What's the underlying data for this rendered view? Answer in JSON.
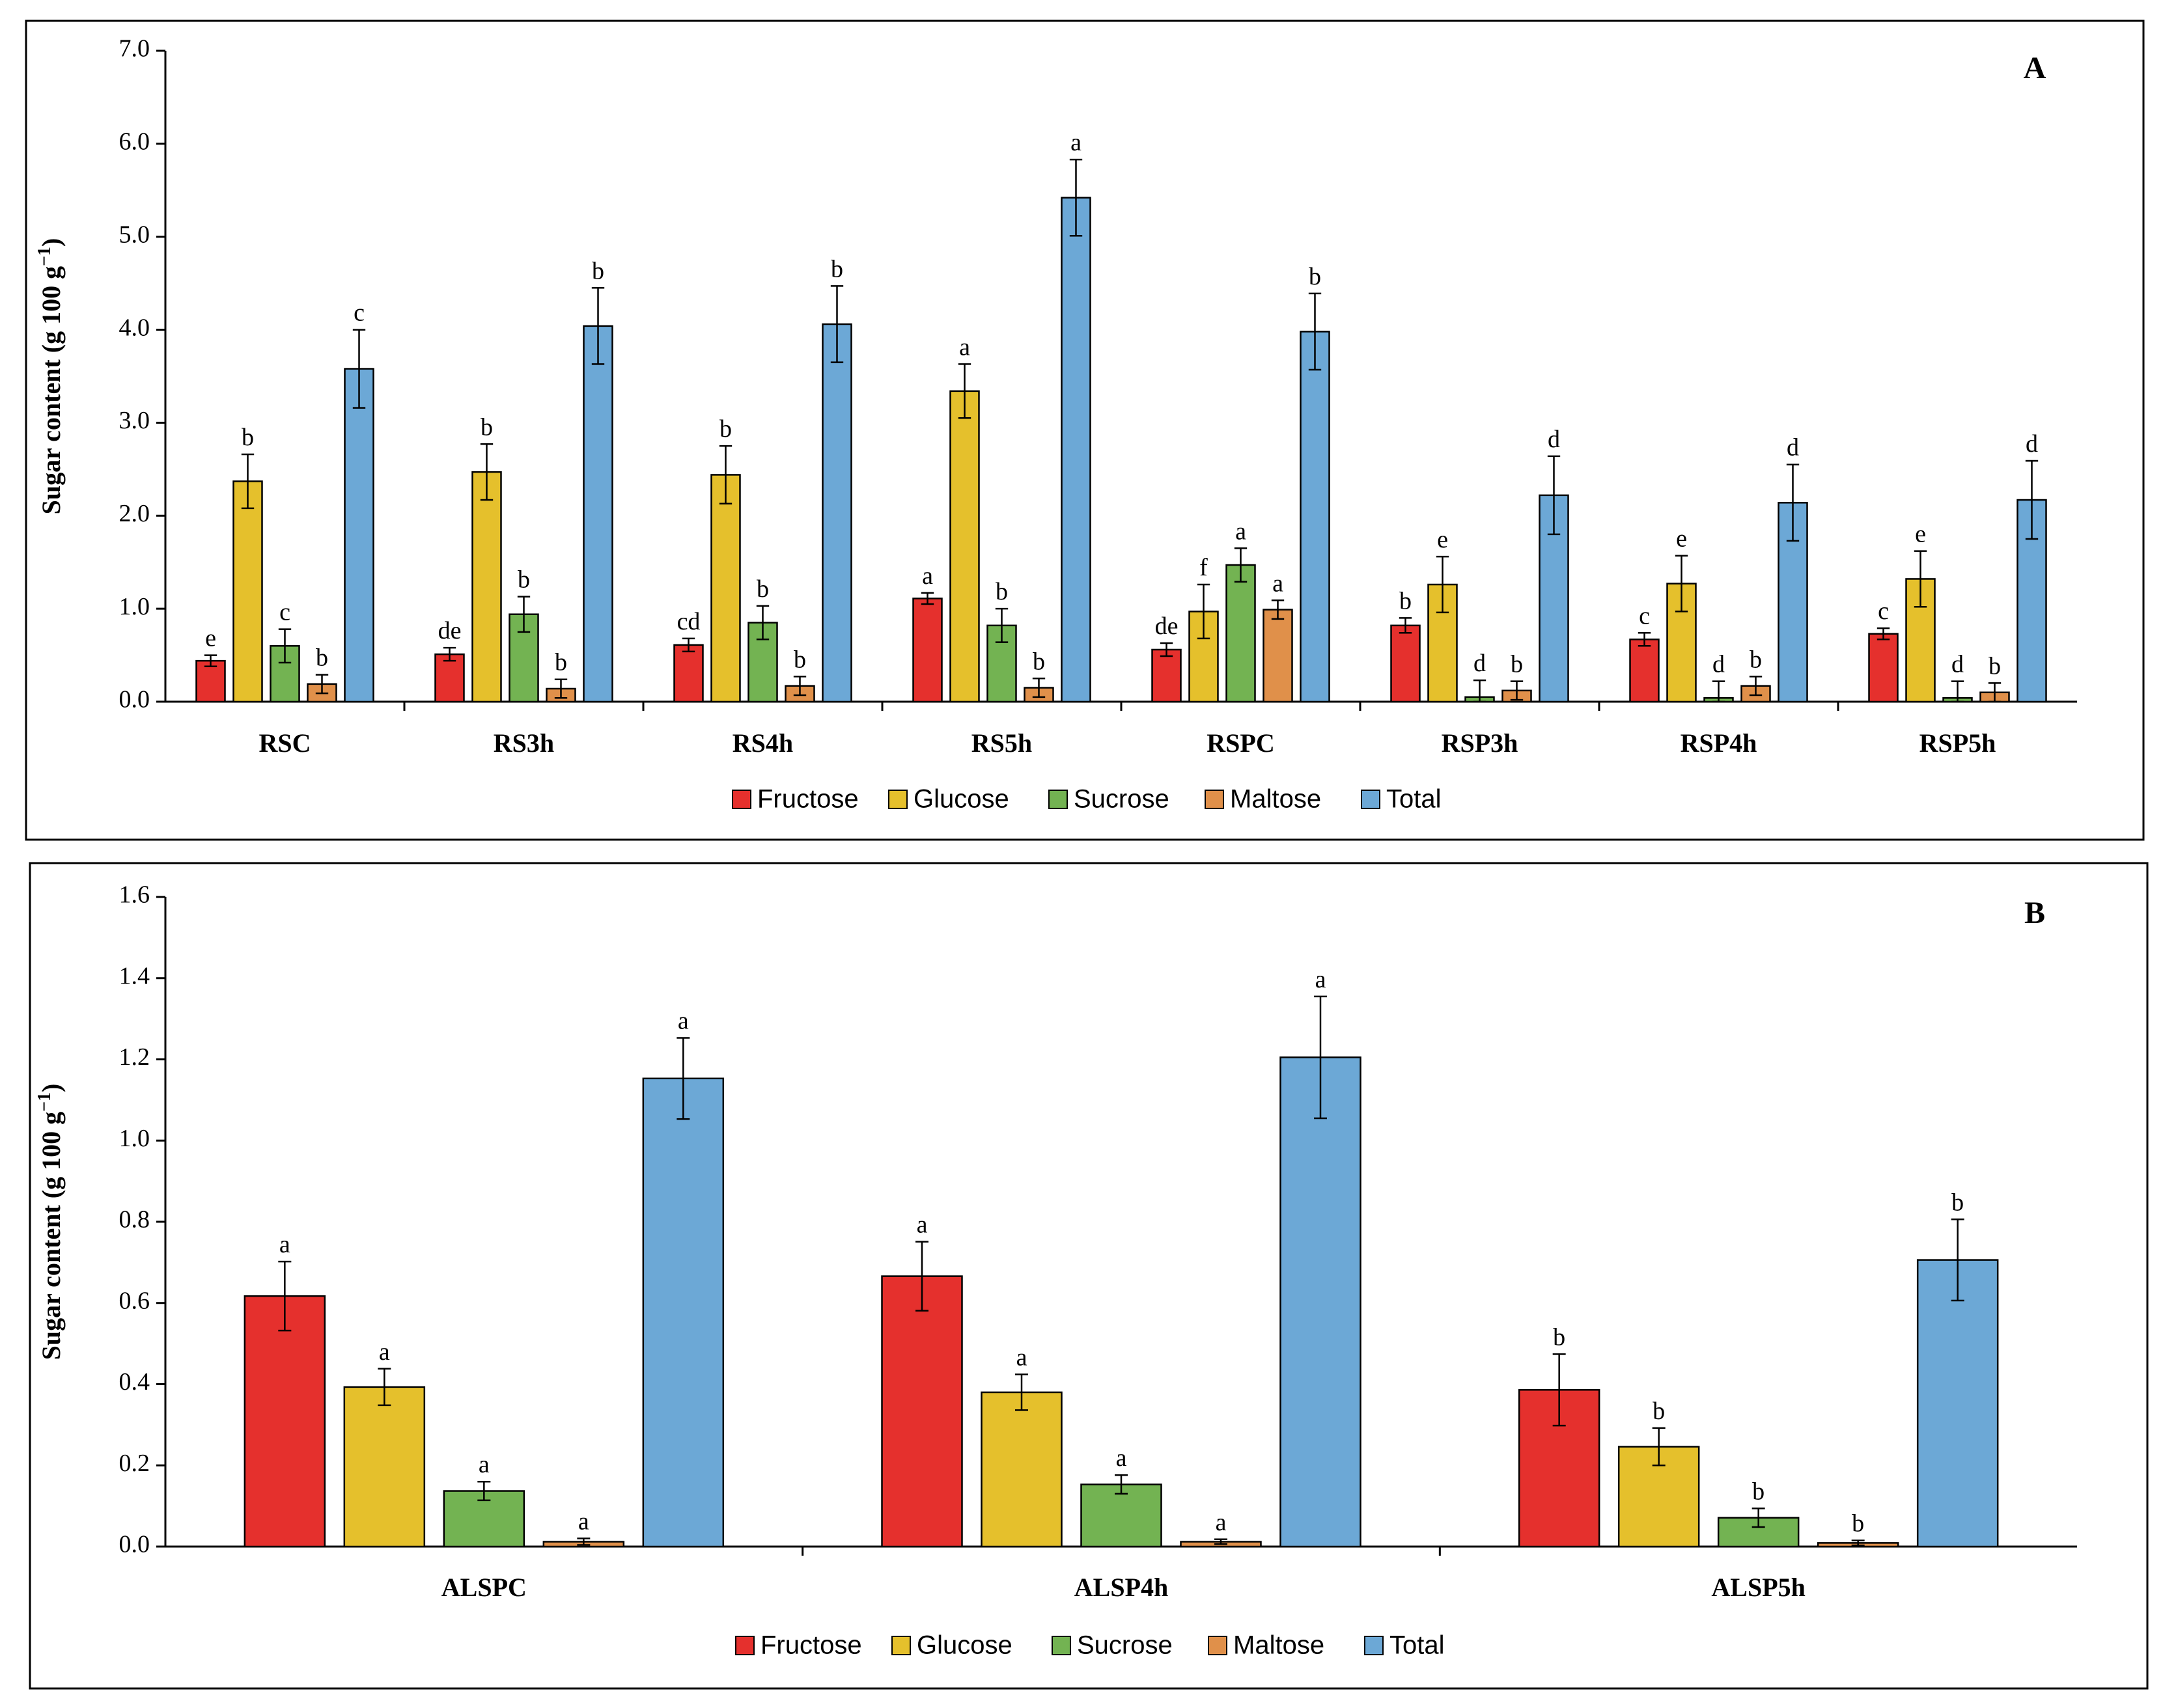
{
  "colors": {
    "Fructose": "#E5302D",
    "Glucose": "#E5C02C",
    "Sucrose": "#73B352",
    "Maltose": "#E0904A",
    "Total": "#6CA8D6"
  },
  "chart_data": [
    {
      "type": "bar",
      "panel_label": "A",
      "ylabel": "Sugar content (g 100 g",
      "ylabel_sup": "−1",
      "ylabel_close": ")",
      "xlabel": "",
      "ylim": [
        0,
        7
      ],
      "yticks": [
        "0.0",
        "1.0",
        "2.0",
        "3.0",
        "4.0",
        "5.0",
        "6.0",
        "7.0"
      ],
      "legend_position": "bottom-center",
      "categories": [
        "RSC",
        "RS3h",
        "RS4h",
        "RS5h",
        "RSPC",
        "RSP3h",
        "RSP4h",
        "RSP5h"
      ],
      "series": [
        {
          "name": "Fructose",
          "values": [
            0.44,
            0.51,
            0.61,
            1.11,
            0.56,
            0.82,
            0.67,
            0.73
          ],
          "errors": [
            0.06,
            0.07,
            0.07,
            0.06,
            0.07,
            0.08,
            0.07,
            0.06
          ],
          "letters": [
            "e",
            "de",
            "cd",
            "a",
            "de",
            "b",
            "c",
            "c"
          ]
        },
        {
          "name": "Glucose",
          "values": [
            2.37,
            2.47,
            2.44,
            3.34,
            0.97,
            1.26,
            1.27,
            1.32
          ],
          "errors": [
            0.29,
            0.3,
            0.31,
            0.29,
            0.29,
            0.3,
            0.3,
            0.3
          ],
          "letters": [
            "b",
            "b",
            "b",
            "a",
            "f",
            "e",
            "e",
            "e"
          ]
        },
        {
          "name": "Sucrose",
          "values": [
            0.6,
            0.94,
            0.85,
            0.82,
            1.47,
            0.05,
            0.04,
            0.04
          ],
          "errors": [
            0.18,
            0.19,
            0.18,
            0.18,
            0.18,
            0.18,
            0.18,
            0.18
          ],
          "letters": [
            "c",
            "b",
            "b",
            "b",
            "a",
            "d",
            "d",
            "d"
          ]
        },
        {
          "name": "Maltose",
          "values": [
            0.19,
            0.14,
            0.17,
            0.15,
            0.99,
            0.12,
            0.17,
            0.1
          ],
          "errors": [
            0.1,
            0.1,
            0.1,
            0.1,
            0.1,
            0.1,
            0.1,
            0.1
          ],
          "letters": [
            "b",
            "b",
            "b",
            "b",
            "a",
            "b",
            "b",
            "b"
          ]
        },
        {
          "name": "Total",
          "values": [
            3.58,
            4.04,
            4.06,
            5.42,
            3.98,
            2.22,
            2.14,
            2.17
          ],
          "errors": [
            0.42,
            0.41,
            0.41,
            0.41,
            0.41,
            0.42,
            0.41,
            0.42
          ],
          "letters": [
            "c",
            "b",
            "b",
            "a",
            "b",
            "d",
            "d",
            "d"
          ]
        }
      ]
    },
    {
      "type": "bar",
      "panel_label": "B",
      "ylabel": "Sugar content (g 100 g",
      "ylabel_sup": "−1",
      "ylabel_close": ")",
      "xlabel": "",
      "ylim": [
        0,
        1.6
      ],
      "yticks": [
        "0.0",
        "0.2",
        "0.4",
        "0.6",
        "0.8",
        "1.0",
        "1.2",
        "1.4",
        "1.6"
      ],
      "legend_position": "bottom-center",
      "categories": [
        "ALSPC",
        "ALSP4h",
        "ALSP5h"
      ],
      "series": [
        {
          "name": "Fructose",
          "values": [
            0.617,
            0.666,
            0.386
          ],
          "errors": [
            0.085,
            0.085,
            0.088
          ],
          "letters": [
            "a",
            "a",
            "b"
          ]
        },
        {
          "name": "Glucose",
          "values": [
            0.393,
            0.38,
            0.246
          ],
          "errors": [
            0.045,
            0.044,
            0.046
          ],
          "letters": [
            "a",
            "a",
            "b"
          ]
        },
        {
          "name": "Sucrose",
          "values": [
            0.137,
            0.153,
            0.071
          ],
          "errors": [
            0.023,
            0.023,
            0.023
          ],
          "letters": [
            "a",
            "a",
            "b"
          ]
        },
        {
          "name": "Maltose",
          "values": [
            0.012,
            0.012,
            0.009
          ],
          "errors": [
            0.008,
            0.006,
            0.006
          ],
          "letters": [
            "a",
            "a",
            "b"
          ]
        },
        {
          "name": "Total",
          "values": [
            1.153,
            1.205,
            0.706
          ],
          "errors": [
            0.1,
            0.15,
            0.1
          ],
          "letters": [
            "a",
            "a",
            "b"
          ]
        }
      ]
    }
  ]
}
